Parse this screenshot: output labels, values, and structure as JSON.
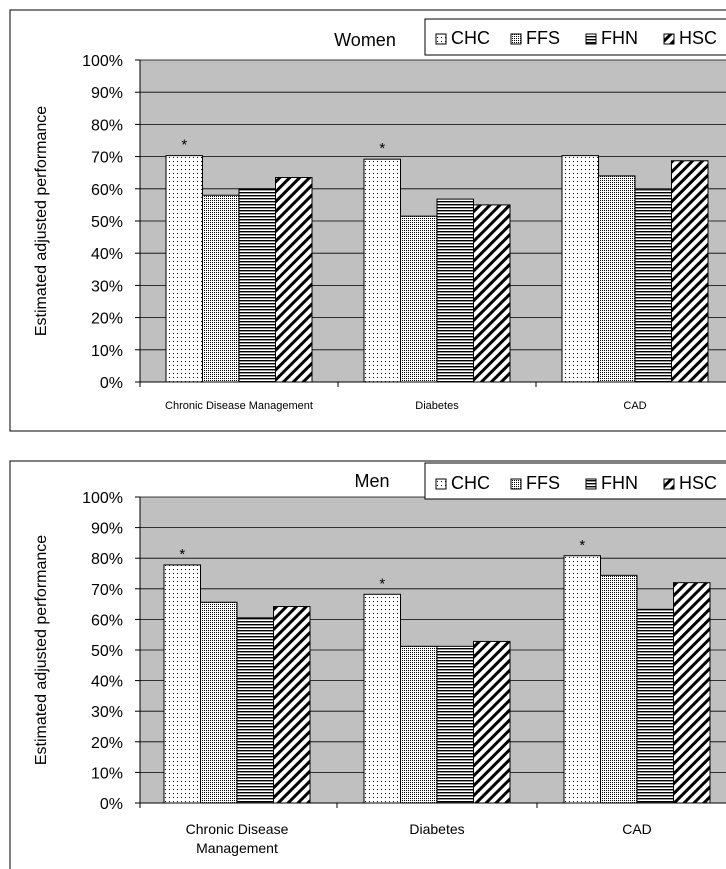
{
  "chart_data": [
    {
      "type": "bar",
      "title": "Women",
      "ylabel": "Estimated adjusted performance",
      "xlabel": "",
      "ylim": [
        0,
        100
      ],
      "yticks": [
        "0%",
        "10%",
        "20%",
        "30%",
        "40%",
        "50%",
        "60%",
        "70%",
        "80%",
        "90%",
        "100%"
      ],
      "categories": [
        [
          "Chronic Disease Management"
        ],
        [
          "Diabetes"
        ],
        [
          "CAD"
        ]
      ],
      "series": [
        {
          "name": "CHC",
          "values": [
            70.3,
            69.2,
            70.3
          ]
        },
        {
          "name": "FFS",
          "values": [
            58.0,
            51.5,
            64.0
          ]
        },
        {
          "name": "FHN",
          "values": [
            60.0,
            56.8,
            59.7
          ]
        },
        {
          "name": "HSC",
          "values": [
            63.5,
            55.0,
            68.7
          ]
        }
      ],
      "annotations": [
        {
          "category": 0,
          "series": 0,
          "text": "*"
        },
        {
          "category": 1,
          "series": 0,
          "text": "*"
        }
      ],
      "legend": "top-right",
      "grid": true
    },
    {
      "type": "bar",
      "title": "Men",
      "ylabel": "Estimated adjusted performance",
      "xlabel": "",
      "ylim": [
        0,
        100
      ],
      "yticks": [
        "0%",
        "10%",
        "20%",
        "30%",
        "40%",
        "50%",
        "60%",
        "70%",
        "80%",
        "90%",
        "100%"
      ],
      "categories": [
        [
          "Chronic Disease",
          "Management"
        ],
        [
          "Diabetes"
        ],
        [
          "CAD"
        ]
      ],
      "series": [
        {
          "name": "CHC",
          "values": [
            77.8,
            68.2,
            80.8
          ]
        },
        {
          "name": "FFS",
          "values": [
            65.6,
            51.2,
            74.4
          ]
        },
        {
          "name": "FHN",
          "values": [
            60.5,
            51.2,
            63.3
          ]
        },
        {
          "name": "HSC",
          "values": [
            64.2,
            52.8,
            72.0
          ]
        }
      ],
      "annotations": [
        {
          "category": 0,
          "series": 0,
          "text": "*"
        },
        {
          "category": 1,
          "series": 0,
          "text": "*"
        },
        {
          "category": 2,
          "series": 0,
          "text": "*"
        }
      ],
      "legend": "top-right",
      "grid": true
    }
  ],
  "colors": {
    "plot_background": "#c0c0c0",
    "bar_fill": "#ffffff",
    "stroke": "#000000",
    "panel_background": "#ffffff"
  },
  "patterns": [
    "sparse-dots",
    "dense-dots",
    "horizontal-lines",
    "diagonal-hatch"
  ]
}
